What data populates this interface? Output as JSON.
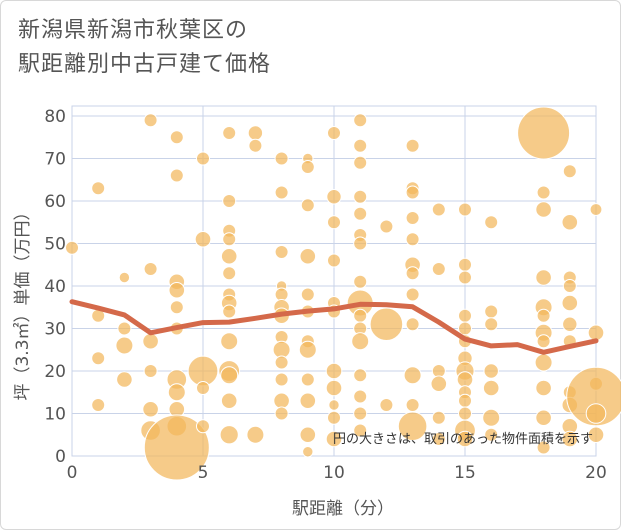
{
  "title_line1": "新潟県新潟市秋葉区の",
  "title_line2": "駅距離別中古戸建て価格",
  "chart_data": {
    "type": "scatter",
    "title": "新潟県新潟市秋葉区の駅距離別中古戸建て価格",
    "xlabel": "駅距離（分）",
    "ylabel": "坪（3.3㎡）単価（万円）",
    "xlim": [
      0,
      20
    ],
    "ylim": [
      0,
      80
    ],
    "xticks": [
      "0",
      "5",
      "10",
      "15",
      "20"
    ],
    "yticks": [
      "0",
      "10",
      "20",
      "30",
      "40",
      "50",
      "60",
      "70",
      "80"
    ],
    "annotation": "円の大きさは、取引のあった物件面積を示す",
    "colors": {
      "bubble": "#f2b75b",
      "line": "#d4694a",
      "grid": "#c9d3e8"
    },
    "points": [
      {
        "x": 0,
        "y": 49,
        "s": 1
      },
      {
        "x": 1,
        "y": 63,
        "s": 1
      },
      {
        "x": 1,
        "y": 33,
        "s": 1
      },
      {
        "x": 1,
        "y": 23,
        "s": 1
      },
      {
        "x": 1,
        "y": 12,
        "s": 1
      },
      {
        "x": 2,
        "y": 42,
        "s": 0.8
      },
      {
        "x": 2,
        "y": 30,
        "s": 1
      },
      {
        "x": 2,
        "y": 26,
        "s": 1.3
      },
      {
        "x": 2,
        "y": 18,
        "s": 1.2
      },
      {
        "x": 3,
        "y": 79,
        "s": 1
      },
      {
        "x": 3,
        "y": 44,
        "s": 1
      },
      {
        "x": 3,
        "y": 27,
        "s": 1.2
      },
      {
        "x": 3,
        "y": 20,
        "s": 1
      },
      {
        "x": 3,
        "y": 11,
        "s": 1.2
      },
      {
        "x": 3,
        "y": 6,
        "s": 1.5
      },
      {
        "x": 4,
        "y": 75,
        "s": 1
      },
      {
        "x": 4,
        "y": 66,
        "s": 1
      },
      {
        "x": 4,
        "y": 41,
        "s": 1.2
      },
      {
        "x": 4,
        "y": 39,
        "s": 1.2
      },
      {
        "x": 4,
        "y": 35,
        "s": 1
      },
      {
        "x": 4,
        "y": 30,
        "s": 1
      },
      {
        "x": 4,
        "y": 18,
        "s": 1.5
      },
      {
        "x": 4,
        "y": 15,
        "s": 1.3
      },
      {
        "x": 4,
        "y": 11,
        "s": 1.2
      },
      {
        "x": 4,
        "y": 7,
        "s": 1.5
      },
      {
        "x": 4,
        "y": 2,
        "s": 5
      },
      {
        "x": 5,
        "y": 70,
        "s": 1
      },
      {
        "x": 5,
        "y": 51,
        "s": 1.2
      },
      {
        "x": 5,
        "y": 20,
        "s": 2.3
      },
      {
        "x": 5,
        "y": 16,
        "s": 1
      },
      {
        "x": 5,
        "y": 7,
        "s": 1
      },
      {
        "x": 6,
        "y": 76,
        "s": 1
      },
      {
        "x": 6,
        "y": 60,
        "s": 1
      },
      {
        "x": 6,
        "y": 53,
        "s": 1
      },
      {
        "x": 6,
        "y": 51,
        "s": 1
      },
      {
        "x": 6,
        "y": 47,
        "s": 1.2
      },
      {
        "x": 6,
        "y": 43,
        "s": 1
      },
      {
        "x": 6,
        "y": 38,
        "s": 1
      },
      {
        "x": 6,
        "y": 36,
        "s": 1.2
      },
      {
        "x": 6,
        "y": 34,
        "s": 1
      },
      {
        "x": 6,
        "y": 27,
        "s": 1.3
      },
      {
        "x": 6,
        "y": 20,
        "s": 1.6
      },
      {
        "x": 6,
        "y": 19,
        "s": 1.3
      },
      {
        "x": 6,
        "y": 13,
        "s": 1.2
      },
      {
        "x": 6,
        "y": 5,
        "s": 1.4
      },
      {
        "x": 7,
        "y": 76,
        "s": 1.1
      },
      {
        "x": 7,
        "y": 73,
        "s": 1
      },
      {
        "x": 7,
        "y": 5,
        "s": 1.3
      },
      {
        "x": 8,
        "y": 70,
        "s": 1
      },
      {
        "x": 8,
        "y": 62,
        "s": 1
      },
      {
        "x": 8,
        "y": 48,
        "s": 1
      },
      {
        "x": 8,
        "y": 40,
        "s": 0.8
      },
      {
        "x": 8,
        "y": 38,
        "s": 1
      },
      {
        "x": 8,
        "y": 35,
        "s": 1.2
      },
      {
        "x": 8,
        "y": 33,
        "s": 1.2
      },
      {
        "x": 8,
        "y": 28,
        "s": 1
      },
      {
        "x": 8,
        "y": 25,
        "s": 1.3
      },
      {
        "x": 8,
        "y": 22,
        "s": 1
      },
      {
        "x": 8,
        "y": 18,
        "s": 1
      },
      {
        "x": 8,
        "y": 13,
        "s": 1.2
      },
      {
        "x": 8,
        "y": 10,
        "s": 1
      },
      {
        "x": 9,
        "y": 70,
        "s": 0.8
      },
      {
        "x": 9,
        "y": 68,
        "s": 1
      },
      {
        "x": 9,
        "y": 59,
        "s": 1
      },
      {
        "x": 9,
        "y": 47,
        "s": 1.2
      },
      {
        "x": 9,
        "y": 38,
        "s": 1
      },
      {
        "x": 9,
        "y": 34,
        "s": 1
      },
      {
        "x": 9,
        "y": 27,
        "s": 1
      },
      {
        "x": 9,
        "y": 25,
        "s": 1.3
      },
      {
        "x": 9,
        "y": 18,
        "s": 1
      },
      {
        "x": 9,
        "y": 13,
        "s": 1.2
      },
      {
        "x": 9,
        "y": 5,
        "s": 1.2
      },
      {
        "x": 9,
        "y": 1,
        "s": 0.8
      },
      {
        "x": 10,
        "y": 76,
        "s": 1
      },
      {
        "x": 10,
        "y": 61,
        "s": 1.1
      },
      {
        "x": 10,
        "y": 55,
        "s": 1
      },
      {
        "x": 10,
        "y": 46,
        "s": 1
      },
      {
        "x": 10,
        "y": 36,
        "s": 1
      },
      {
        "x": 10,
        "y": 34,
        "s": 1
      },
      {
        "x": 10,
        "y": 20,
        "s": 1.2
      },
      {
        "x": 10,
        "y": 16,
        "s": 1.2
      },
      {
        "x": 10,
        "y": 12,
        "s": 0.8
      },
      {
        "x": 10,
        "y": 9,
        "s": 1
      },
      {
        "x": 10,
        "y": 4,
        "s": 1.2
      },
      {
        "x": 11,
        "y": 79,
        "s": 1
      },
      {
        "x": 11,
        "y": 73,
        "s": 1
      },
      {
        "x": 11,
        "y": 69,
        "s": 1
      },
      {
        "x": 11,
        "y": 61,
        "s": 1
      },
      {
        "x": 11,
        "y": 57,
        "s": 1
      },
      {
        "x": 11,
        "y": 52,
        "s": 1
      },
      {
        "x": 11,
        "y": 50,
        "s": 1
      },
      {
        "x": 11,
        "y": 41,
        "s": 1
      },
      {
        "x": 11,
        "y": 36,
        "s": 2
      },
      {
        "x": 11,
        "y": 33,
        "s": 1
      },
      {
        "x": 11,
        "y": 30,
        "s": 1
      },
      {
        "x": 11,
        "y": 27,
        "s": 1.3
      },
      {
        "x": 11,
        "y": 19,
        "s": 1
      },
      {
        "x": 11,
        "y": 14,
        "s": 1
      },
      {
        "x": 11,
        "y": 10,
        "s": 1
      },
      {
        "x": 11,
        "y": 6,
        "s": 1
      },
      {
        "x": 12,
        "y": 54,
        "s": 1
      },
      {
        "x": 12,
        "y": 31,
        "s": 2.5
      },
      {
        "x": 12,
        "y": 12,
        "s": 1
      },
      {
        "x": 13,
        "y": 73,
        "s": 1
      },
      {
        "x": 13,
        "y": 63,
        "s": 1
      },
      {
        "x": 13,
        "y": 62,
        "s": 1
      },
      {
        "x": 13,
        "y": 56,
        "s": 1
      },
      {
        "x": 13,
        "y": 51,
        "s": 1
      },
      {
        "x": 13,
        "y": 45,
        "s": 1.2
      },
      {
        "x": 13,
        "y": 43,
        "s": 1
      },
      {
        "x": 13,
        "y": 38,
        "s": 1
      },
      {
        "x": 13,
        "y": 31,
        "s": 1
      },
      {
        "x": 13,
        "y": 19,
        "s": 1.3
      },
      {
        "x": 13,
        "y": 12,
        "s": 1
      },
      {
        "x": 13,
        "y": 7,
        "s": 2.2
      },
      {
        "x": 14,
        "y": 58,
        "s": 1
      },
      {
        "x": 14,
        "y": 44,
        "s": 1
      },
      {
        "x": 14,
        "y": 20,
        "s": 1
      },
      {
        "x": 14,
        "y": 17,
        "s": 1.2
      },
      {
        "x": 14,
        "y": 9,
        "s": 1
      },
      {
        "x": 14,
        "y": 4,
        "s": 1
      },
      {
        "x": 15,
        "y": 58,
        "s": 1
      },
      {
        "x": 15,
        "y": 45,
        "s": 1
      },
      {
        "x": 15,
        "y": 42,
        "s": 1
      },
      {
        "x": 15,
        "y": 33,
        "s": 1
      },
      {
        "x": 15,
        "y": 30,
        "s": 1
      },
      {
        "x": 15,
        "y": 27,
        "s": 1
      },
      {
        "x": 15,
        "y": 23,
        "s": 1.1
      },
      {
        "x": 15,
        "y": 20,
        "s": 1.4
      },
      {
        "x": 15,
        "y": 18,
        "s": 1.2
      },
      {
        "x": 15,
        "y": 15,
        "s": 1
      },
      {
        "x": 15,
        "y": 13,
        "s": 1
      },
      {
        "x": 15,
        "y": 10,
        "s": 1
      },
      {
        "x": 15,
        "y": 6,
        "s": 1.6
      },
      {
        "x": 15,
        "y": 4,
        "s": 1.2
      },
      {
        "x": 16,
        "y": 55,
        "s": 1
      },
      {
        "x": 16,
        "y": 34,
        "s": 1
      },
      {
        "x": 16,
        "y": 31,
        "s": 1
      },
      {
        "x": 16,
        "y": 20,
        "s": 1.1
      },
      {
        "x": 16,
        "y": 16,
        "s": 1.2
      },
      {
        "x": 16,
        "y": 9,
        "s": 1.3
      },
      {
        "x": 16,
        "y": 5,
        "s": 1
      },
      {
        "x": 18,
        "y": 76,
        "s": 4
      },
      {
        "x": 18,
        "y": 62,
        "s": 1
      },
      {
        "x": 18,
        "y": 58,
        "s": 1.2
      },
      {
        "x": 18,
        "y": 42,
        "s": 1.2
      },
      {
        "x": 18,
        "y": 35,
        "s": 1.3
      },
      {
        "x": 18,
        "y": 33,
        "s": 1
      },
      {
        "x": 18,
        "y": 29,
        "s": 1.3
      },
      {
        "x": 18,
        "y": 27,
        "s": 1
      },
      {
        "x": 18,
        "y": 22,
        "s": 1.3
      },
      {
        "x": 18,
        "y": 16,
        "s": 1.2
      },
      {
        "x": 18,
        "y": 9,
        "s": 1.2
      },
      {
        "x": 18,
        "y": 2,
        "s": 1
      },
      {
        "x": 19,
        "y": 67,
        "s": 1
      },
      {
        "x": 19,
        "y": 55,
        "s": 1.2
      },
      {
        "x": 19,
        "y": 42,
        "s": 1
      },
      {
        "x": 19,
        "y": 40,
        "s": 1
      },
      {
        "x": 19,
        "y": 36,
        "s": 1.2
      },
      {
        "x": 19,
        "y": 31,
        "s": 1.1
      },
      {
        "x": 19,
        "y": 27,
        "s": 1
      },
      {
        "x": 19,
        "y": 15,
        "s": 1
      },
      {
        "x": 19,
        "y": 12,
        "s": 1.2
      },
      {
        "x": 19,
        "y": 7,
        "s": 1.2
      },
      {
        "x": 19,
        "y": 4,
        "s": 1.2
      },
      {
        "x": 20,
        "y": 58,
        "s": 0.9
      },
      {
        "x": 20,
        "y": 29,
        "s": 1.2
      },
      {
        "x": 20,
        "y": 17,
        "s": 1
      },
      {
        "x": 20,
        "y": 14,
        "s": 4.5
      },
      {
        "x": 20,
        "y": 10,
        "s": 1.5
      },
      {
        "x": 20,
        "y": 5,
        "s": 1.2
      }
    ],
    "trend": {
      "x": [
        0,
        1,
        2,
        3,
        4,
        5,
        6,
        7,
        8,
        9,
        10,
        11,
        12,
        13,
        14,
        15,
        16,
        17,
        18,
        19,
        20
      ],
      "y": [
        36.3,
        34.8,
        33.2,
        29,
        30.2,
        31.4,
        31.5,
        32.4,
        33.4,
        34.1,
        34.6,
        35.7,
        35.6,
        35.1,
        31.5,
        27.5,
        25.9,
        26.2,
        24.4,
        25.8,
        27.1
      ]
    }
  }
}
